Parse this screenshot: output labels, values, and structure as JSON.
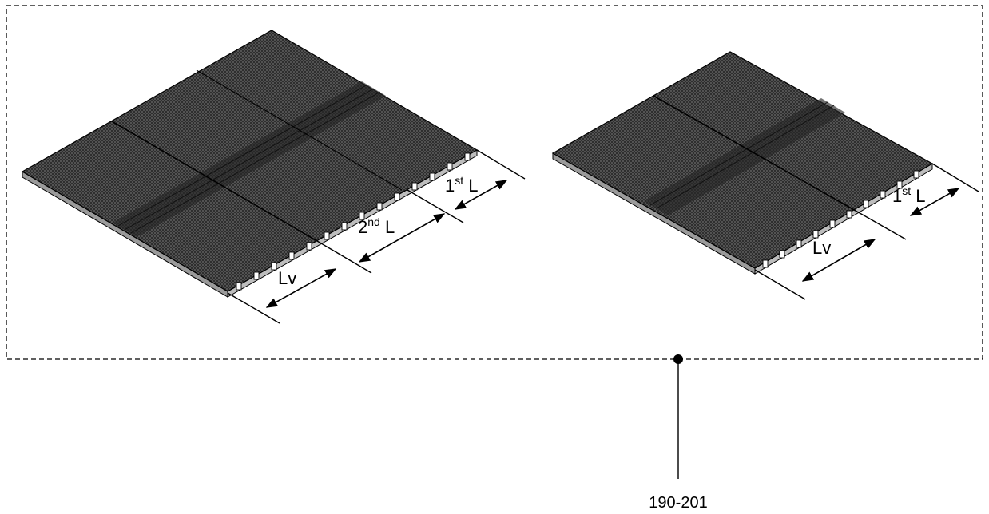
{
  "left_panel": {
    "first_span": {
      "ordinal": "1",
      "suffix": "st",
      "symbol": "L"
    },
    "second_span": {
      "ordinal": "2",
      "suffix": "nd",
      "symbol": "L"
    },
    "vent_span": {
      "label": "Lv"
    }
  },
  "right_panel": {
    "first_span": {
      "ordinal": "1",
      "suffix": "st",
      "symbol": "L"
    },
    "vent_span": {
      "label": "Lv"
    }
  },
  "reference": {
    "label": "190-201"
  },
  "colors": {
    "ink": "#000000",
    "mesh": "#3a3a3a",
    "background": "#ffffff"
  }
}
